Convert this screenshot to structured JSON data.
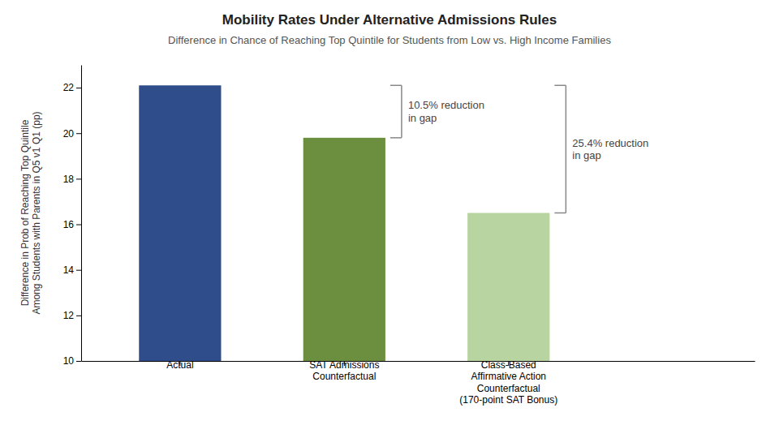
{
  "chart_data": {
    "type": "bar",
    "title": "Mobility Rates Under Alternative Admissions Rules",
    "subtitle": "Difference in Chance of Reaching Top Quintile for Students from Low vs. High Income Families",
    "ylabel": "Difference in Prob of Reaching Top Quintile\nAmong Students with Parents in Q5 v1 Q1 (pp)",
    "categories": [
      "Actual",
      "SAT Admissions\nCounterfactual",
      "Class-Based\nAffirmative Action\nCounterfactual\n(170-point SAT Bonus)"
    ],
    "values": [
      22.1,
      19.8,
      16.5
    ],
    "colors": [
      "#2e4d8a",
      "#6b8f3e",
      "#b8d4a0"
    ],
    "ylim": [
      10,
      23
    ],
    "yticks": [
      10,
      12,
      14,
      16,
      18,
      20,
      22
    ],
    "annotations": [
      "10.5% reduction\nin gap",
      "25.4% reduction\nin gap"
    ],
    "grid": false
  }
}
